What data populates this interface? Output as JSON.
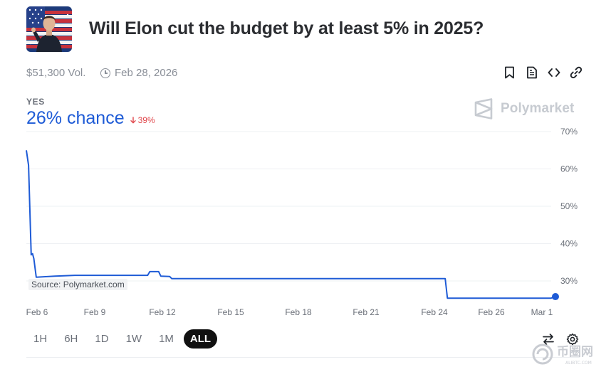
{
  "market": {
    "title": "Will Elon cut the budget by at least 5% in 2025?",
    "volume": "$51,300 Vol.",
    "end_date": "Feb 28, 2026"
  },
  "actions": [
    "bookmark-icon",
    "document-icon",
    "embed-code-icon",
    "link-icon"
  ],
  "outcome": {
    "label": "YES",
    "chance_text": "26% chance",
    "delta_text": "39%",
    "delta_direction": "down"
  },
  "brand": {
    "name": "Polymarket"
  },
  "source_label": "Source: Polymarket.com",
  "colors": {
    "line": "#1e5bd6",
    "delta_down": "#e0474c",
    "active_range_bg": "#111111"
  },
  "chart_data": {
    "type": "line",
    "x_tick_labels": [
      "Feb 6",
      "Feb 9",
      "Feb 12",
      "Feb 15",
      "Feb 18",
      "Feb 21",
      "Feb 24",
      "Feb 26",
      "Mar 1"
    ],
    "y_tick_labels": [
      "70%",
      "60%",
      "50%",
      "40%",
      "30%"
    ],
    "ylim": [
      25,
      70
    ],
    "y_ticks": [
      70,
      60,
      50,
      40,
      30
    ],
    "grid": true,
    "series": [
      {
        "values": [
          {
            "x": 6.0,
            "y": 65
          },
          {
            "x": 6.1,
            "y": 61
          },
          {
            "x": 6.22,
            "y": 37
          },
          {
            "x": 6.28,
            "y": 37.3
          },
          {
            "x": 6.34,
            "y": 36
          },
          {
            "x": 6.45,
            "y": 31
          },
          {
            "x": 7.3,
            "y": 31.3
          },
          {
            "x": 8.2,
            "y": 31.5
          },
          {
            "x": 11.5,
            "y": 31.5
          },
          {
            "x": 11.6,
            "y": 32.5
          },
          {
            "x": 12.0,
            "y": 32.5
          },
          {
            "x": 12.1,
            "y": 31.3
          },
          {
            "x": 12.5,
            "y": 31.2
          },
          {
            "x": 12.6,
            "y": 30.6
          },
          {
            "x": 25.0,
            "y": 30.6
          },
          {
            "x": 25.1,
            "y": 25.4
          },
          {
            "x": 29.8,
            "y": 25.4
          },
          {
            "x": 30.0,
            "y": 25.8
          }
        ]
      }
    ],
    "last_value": 26
  },
  "time_ranges": [
    "1H",
    "6H",
    "1D",
    "1W",
    "1M",
    "ALL"
  ],
  "selected_range": "ALL",
  "tools": [
    "swap-icon",
    "settings-gear-icon"
  ],
  "watermark": {
    "text": "币圈网",
    "sub": "ALIBTC.COM"
  }
}
